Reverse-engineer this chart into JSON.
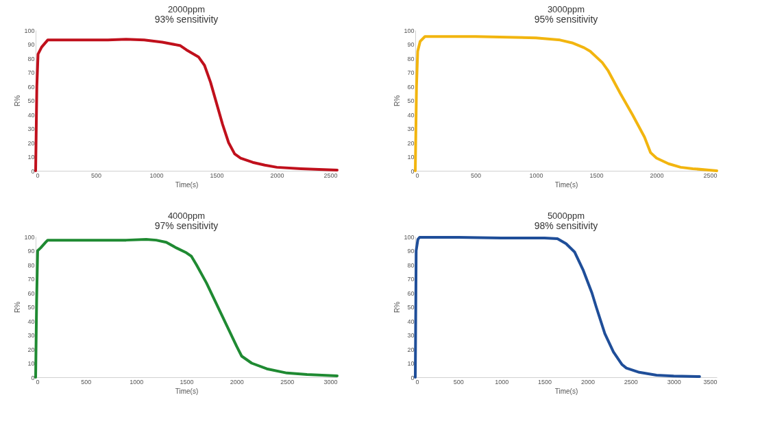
{
  "chart_data": [
    {
      "type": "line",
      "title": "2000ppm",
      "subtitle": "93% sensitivity",
      "xlabel": "Time(s)",
      "ylabel": "R%",
      "xlim": [
        0,
        2500
      ],
      "xticks": [
        0,
        500,
        1000,
        1500,
        2000,
        2500
      ],
      "ylim": [
        0,
        100
      ],
      "yticks": [
        0,
        10,
        20,
        30,
        40,
        50,
        60,
        70,
        80,
        90,
        100
      ],
      "grid": false,
      "x": [
        0,
        10,
        20,
        50,
        100,
        300,
        600,
        750,
        900,
        1050,
        1200,
        1250,
        1350,
        1400,
        1450,
        1500,
        1550,
        1600,
        1650,
        1700,
        1800,
        1900,
        2000,
        2200,
        2500
      ],
      "series": [
        {
          "color": "#c0101c",
          "values": [
            0,
            60,
            83,
            88,
            93,
            93,
            93,
            93.5,
            93,
            91.5,
            89,
            86,
            81,
            75,
            63,
            48,
            33,
            20,
            12,
            9,
            6,
            4,
            2.5,
            1.5,
            0.5
          ]
        }
      ]
    },
    {
      "type": "line",
      "title": "3000ppm",
      "subtitle": "95% sensitivity",
      "xlabel": "Time(s)",
      "ylabel": "R%",
      "xlim": [
        0,
        2500
      ],
      "xticks": [
        0,
        500,
        1000,
        1500,
        2000,
        2500
      ],
      "ylim": [
        0,
        100
      ],
      "yticks": [
        0,
        10,
        20,
        30,
        40,
        50,
        60,
        70,
        80,
        90,
        100
      ],
      "grid": false,
      "x": [
        0,
        10,
        20,
        40,
        80,
        500,
        1000,
        1200,
        1300,
        1400,
        1450,
        1550,
        1600,
        1700,
        1800,
        1900,
        1950,
        2000,
        2100,
        2200,
        2300,
        2500
      ],
      "series": [
        {
          "color": "#f2b50f",
          "values": [
            0,
            60,
            85,
            92,
            95.5,
            95.5,
            94.5,
            93,
            91,
            87.5,
            85,
            77,
            71,
            55,
            40,
            24,
            13,
            9,
            5,
            2.5,
            1.5,
            0
          ]
        }
      ]
    },
    {
      "type": "line",
      "title": "4000ppm",
      "subtitle": "97% sensitivity",
      "xlabel": "Time(s)",
      "ylabel": "R%",
      "xlim": [
        0,
        3000
      ],
      "xticks": [
        0,
        500,
        1000,
        1500,
        2000,
        2500,
        3000
      ],
      "ylim": [
        0,
        100
      ],
      "yticks": [
        0,
        10,
        20,
        30,
        40,
        50,
        60,
        70,
        80,
        90,
        100
      ],
      "grid": false,
      "x": [
        0,
        10,
        20,
        50,
        100,
        120,
        500,
        900,
        1100,
        1200,
        1300,
        1400,
        1500,
        1550,
        1600,
        1700,
        1800,
        1900,
        2000,
        2050,
        2150,
        2300,
        2500,
        2700,
        3000
      ],
      "series": [
        {
          "color": "#1f8a32",
          "values": [
            0,
            55,
            90,
            92,
            96,
            97.5,
            97.5,
            97.5,
            98,
            97.5,
            96,
            92,
            88.5,
            86,
            80,
            67,
            52,
            37,
            22,
            15,
            10,
            6,
            3,
            2,
            1
          ]
        }
      ]
    },
    {
      "type": "line",
      "title": "5000ppm",
      "subtitle": "98% sensitivity",
      "xlabel": "Time(s)",
      "ylabel": "R%",
      "xlim": [
        0,
        3500
      ],
      "xticks": [
        0,
        500,
        1000,
        1500,
        2000,
        2500,
        3000,
        3500
      ],
      "ylim": [
        0,
        100
      ],
      "yticks": [
        0,
        10,
        20,
        30,
        40,
        50,
        60,
        70,
        80,
        90,
        100
      ],
      "grid": false,
      "x": [
        0,
        10,
        30,
        50,
        500,
        1000,
        1500,
        1650,
        1750,
        1850,
        1950,
        2050,
        2100,
        2200,
        2300,
        2400,
        2450,
        2600,
        2800,
        3000,
        3300
      ],
      "series": [
        {
          "color": "#1f4e99",
          "values": [
            0,
            90,
            98,
            99.5,
            99.5,
            99,
            99,
            98.5,
            95,
            89,
            76,
            60,
            50,
            31,
            18,
            9,
            6.5,
            3.5,
            1.5,
            0.8,
            0.5
          ]
        }
      ]
    }
  ]
}
